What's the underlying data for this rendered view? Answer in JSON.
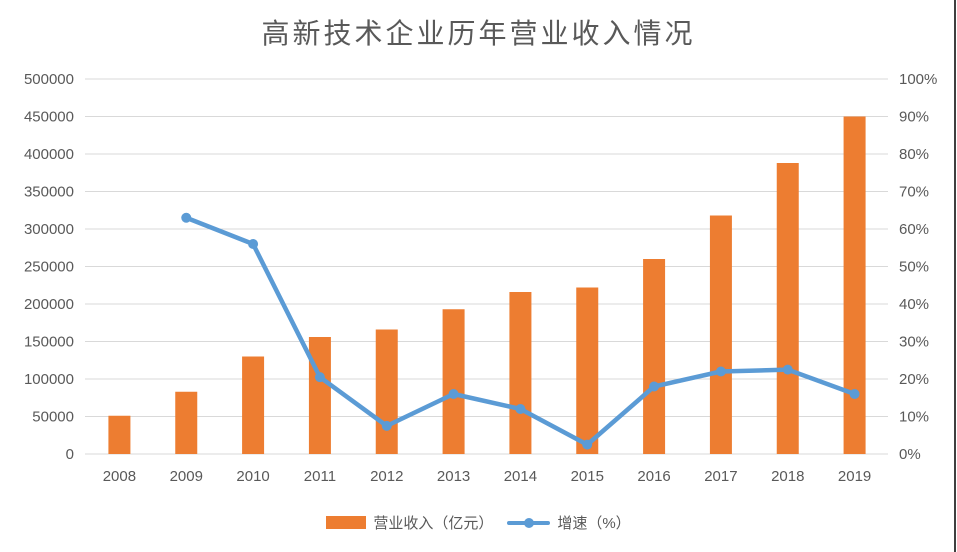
{
  "title": "高新技术企业历年营业收入情况",
  "colors": {
    "bar_orange": "#ED7D31",
    "line_blue": "#5B9BD5",
    "gridline": "#D9D9D9",
    "axis_text": "#595959",
    "title_text": "#595959",
    "edge_line": "#3F3F3F",
    "background": "#FFFFFF"
  },
  "chart_data": {
    "type": "bar+line",
    "title": "高新技术企业历年营业收入情况",
    "categories": [
      "2008",
      "2009",
      "2010",
      "2011",
      "2012",
      "2013",
      "2014",
      "2015",
      "2016",
      "2017",
      "2018",
      "2019"
    ],
    "series": [
      {
        "name": "营业收入（亿元）",
        "type": "bar",
        "axis": "left",
        "color": "#ED7D31",
        "values": [
          51000,
          83000,
          130000,
          156000,
          166000,
          193000,
          216000,
          222000,
          260000,
          318000,
          388000,
          450000
        ]
      },
      {
        "name": "增速（%）",
        "type": "line",
        "axis": "right",
        "color": "#5B9BD5",
        "values": [
          null,
          63,
          56,
          20.5,
          7.5,
          16,
          12,
          2.5,
          18,
          22,
          22.5,
          16
        ]
      }
    ],
    "left_axis": {
      "min": 0,
      "max": 500000,
      "step": 50000,
      "tick_labels": [
        "0",
        "50000",
        "100000",
        "150000",
        "200000",
        "250000",
        "300000",
        "350000",
        "400000",
        "450000",
        "500000"
      ]
    },
    "right_axis": {
      "min": 0,
      "max": 100,
      "step": 10,
      "tick_labels": [
        "0%",
        "10%",
        "20%",
        "30%",
        "40%",
        "50%",
        "60%",
        "70%",
        "80%",
        "90%",
        "100%"
      ]
    },
    "grid": true,
    "legend_position": "bottom"
  }
}
